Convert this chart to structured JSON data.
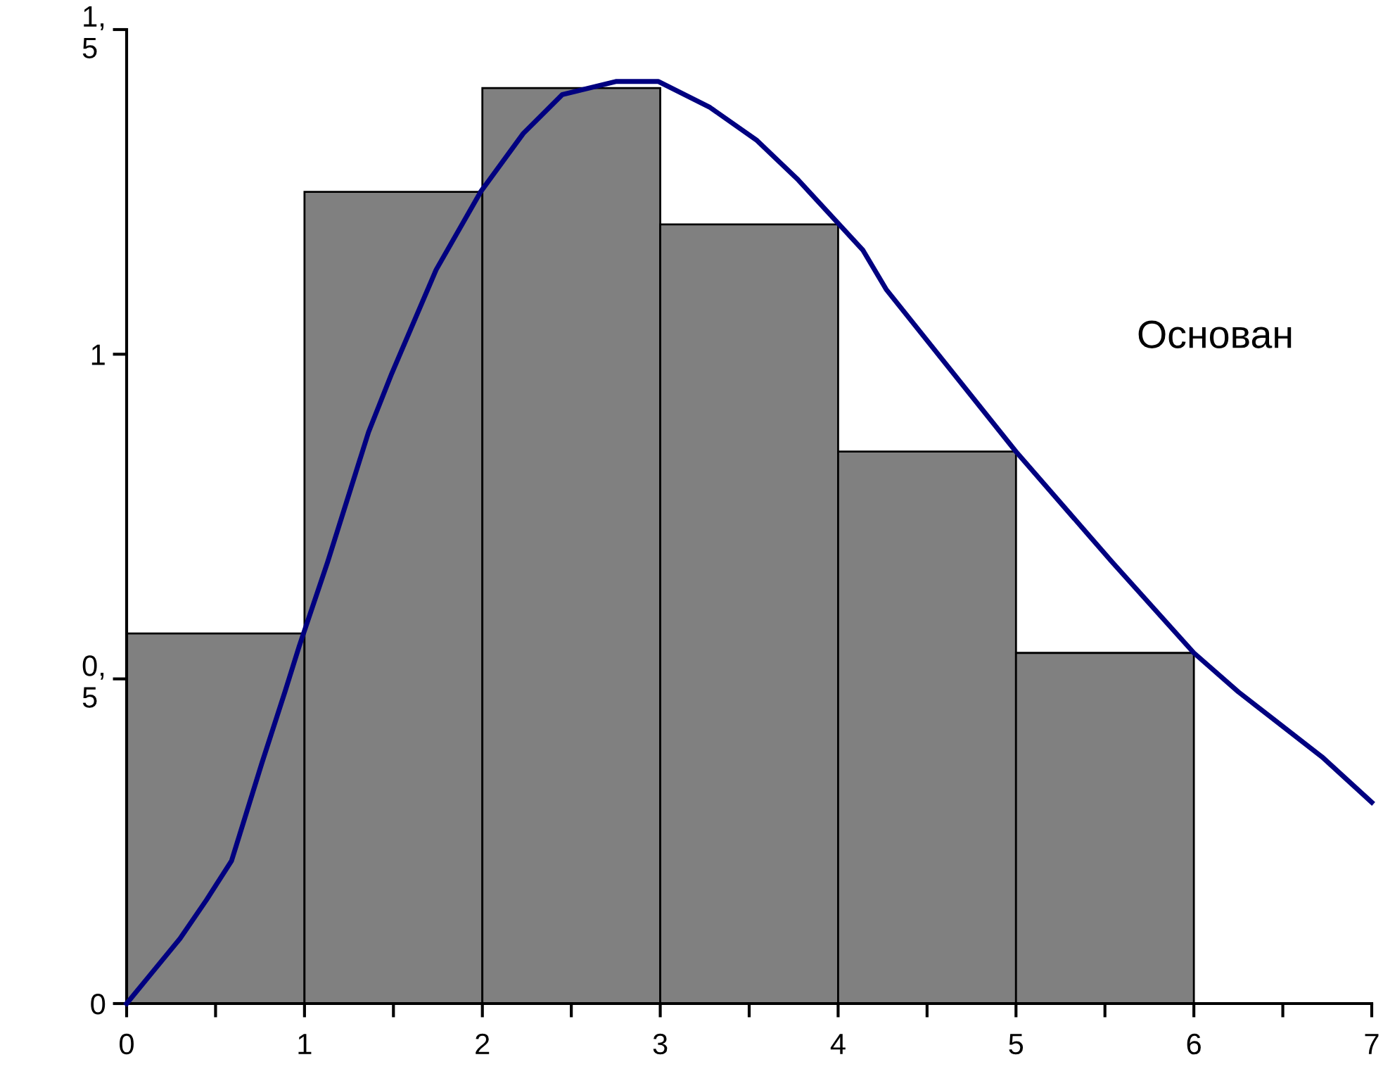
{
  "chart_data": {
    "type": "histogram",
    "bins": [
      0,
      1,
      2,
      3,
      4,
      5,
      6
    ],
    "values": [
      0.57,
      1.25,
      1.41,
      1.2,
      0.85,
      0.54
    ],
    "color": "#808080",
    "series": [
      {
        "type": "line",
        "color": "#000080",
        "x": [
          0,
          0.12,
          0.3,
          0.45,
          0.59,
          0.76,
          0.89,
          0.97,
          1.13,
          1.36,
          1.49,
          1.74,
          1.99,
          2.23,
          2.45,
          2.75,
          2.99,
          3.28,
          3.54,
          3.77,
          4.14,
          4.27,
          5.0,
          5.54,
          6.0,
          6.25,
          6.72,
          7.0
        ],
        "values": [
          0,
          0.04,
          0.1,
          0.16,
          0.22,
          0.37,
          0.48,
          0.55,
          0.68,
          0.88,
          0.97,
          1.13,
          1.25,
          1.34,
          1.4,
          1.42,
          1.42,
          1.38,
          1.33,
          1.27,
          1.16,
          1.1,
          0.85,
          0.68,
          0.54,
          0.48,
          0.38,
          0.31
        ]
      }
    ],
    "xlim": [
      0,
      7
    ],
    "xticks": [
      0,
      {
        "value": 0.5,
        "label": null
      },
      1,
      {
        "value": 1.5,
        "label": null
      },
      2,
      {
        "value": 2.5,
        "label": null
      },
      3,
      {
        "value": 3.5,
        "label": null
      },
      4,
      {
        "value": 4.5,
        "label": null
      },
      5,
      {
        "value": 5.5,
        "label": null
      },
      6,
      {
        "value": 6.5,
        "label": null
      },
      7
    ],
    "ylim": [
      0,
      1.5
    ],
    "yticks": [
      0,
      {
        "value": 0.5,
        "label": "0,\n5"
      },
      1,
      {
        "value": 1.5,
        "label": "1,\n5"
      }
    ],
    "annotations": [
      "Основан"
    ],
    "grid": false,
    "legend": false
  }
}
